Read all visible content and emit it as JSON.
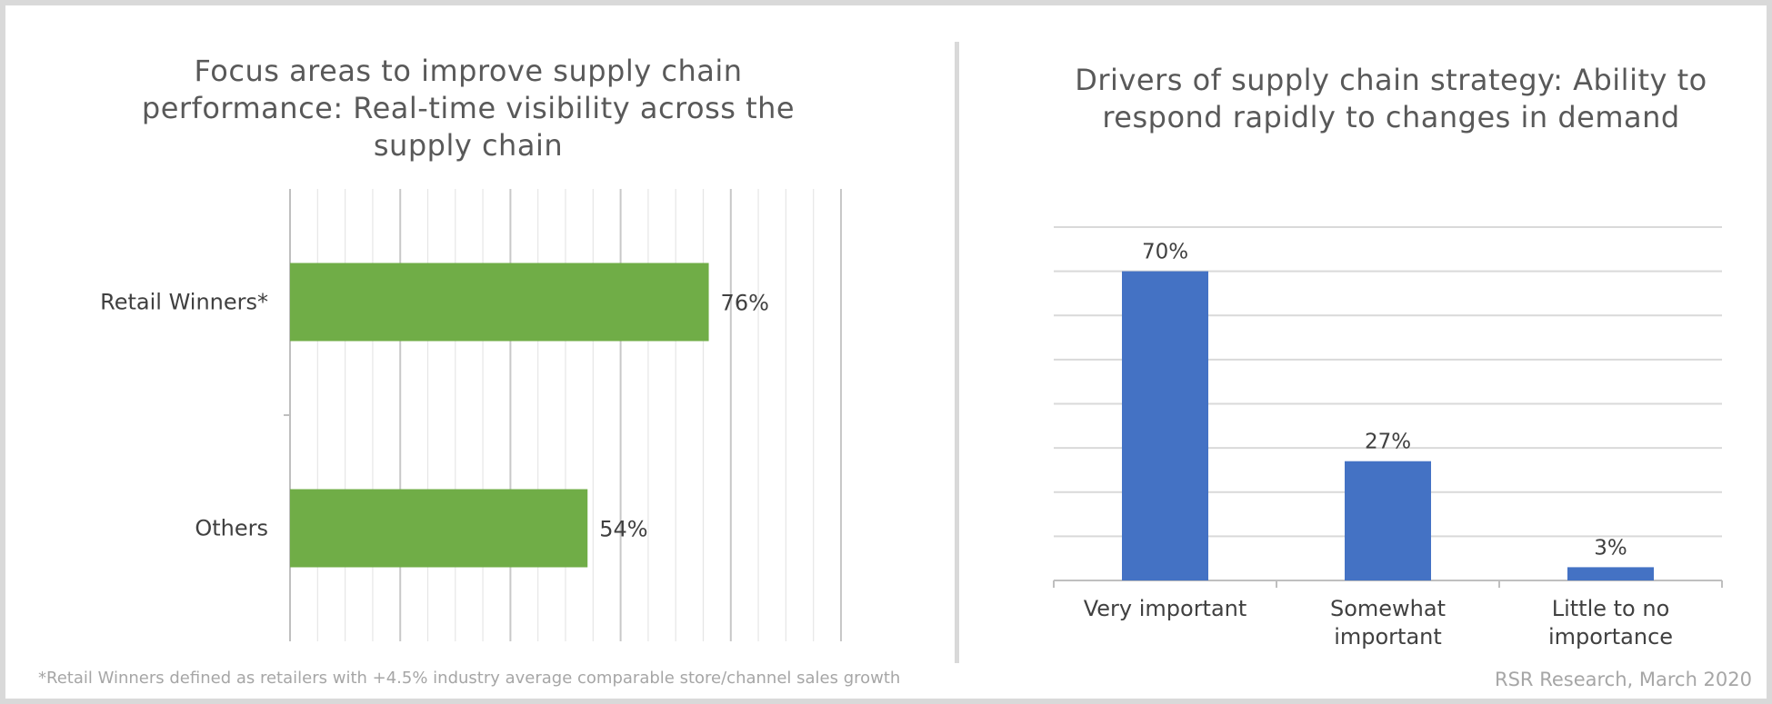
{
  "chart_data": [
    {
      "type": "bar",
      "orientation": "horizontal",
      "title": "Focus areas to improve supply chain performance: Real-time visibility across the supply chain",
      "categories": [
        "Retail Winners*",
        "Others"
      ],
      "values": [
        76,
        54
      ],
      "value_labels": [
        "76%",
        "54%"
      ],
      "xlim": [
        0,
        100
      ],
      "grid": true,
      "bar_color": "#70ad47"
    },
    {
      "type": "bar",
      "orientation": "vertical",
      "title": "Drivers of supply chain strategy: Ability to respond rapidly to changes in demand",
      "categories": [
        "Very important",
        "Somewhat important",
        "Little to no importance"
      ],
      "category_lines": [
        [
          "Very important"
        ],
        [
          "Somewhat",
          "important"
        ],
        [
          "Little to no",
          "importance"
        ]
      ],
      "values": [
        70,
        27,
        3
      ],
      "value_labels": [
        "70%",
        "27%",
        "3%"
      ],
      "ylim": [
        0,
        80
      ],
      "grid": true,
      "bar_color": "#4472c4"
    }
  ],
  "footnote": "*Retail Winners defined as retailers with +4.5% industry average comparable store/channel sales growth",
  "source": "RSR Research, March 2020"
}
